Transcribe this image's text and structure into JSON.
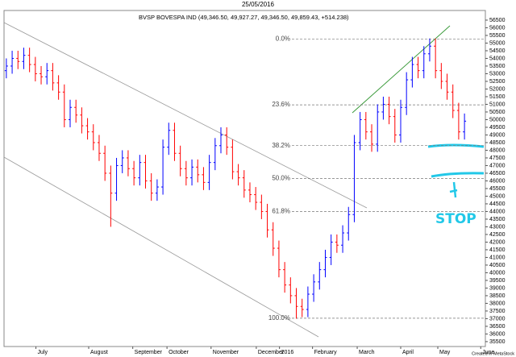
{
  "chart_data": {
    "type": "ohlc",
    "title": "25/05/2016",
    "subtitle": "BVSP BOVESPA IND (49,346.50, 49,927.27, 49,346.50, 49,859.43, +514.238)",
    "credit": "Created in MetaStock",
    "annotations": [
      "STOP"
    ],
    "up_color": "#0000ff",
    "down_color": "#ff0000",
    "xlim": [
      -0.4,
      82.6
    ],
    "xticks": [
      {
        "value": 5.1,
        "label": "July"
      },
      {
        "value": 14.2,
        "label": "August"
      },
      {
        "value": 21.8,
        "label": "September"
      },
      {
        "value": 27.7,
        "label": "October"
      },
      {
        "value": 35.3,
        "label": "November"
      },
      {
        "value": 43.1,
        "label": "December"
      },
      {
        "value": 47.1,
        "label": "2016"
      },
      {
        "value": 52.8,
        "label": "February"
      },
      {
        "value": 60.5,
        "label": "March"
      },
      {
        "value": 68.0,
        "label": "April"
      },
      {
        "value": 74.4,
        "label": "May"
      },
      {
        "value": 81.8,
        "label": "June"
      }
    ],
    "ylim": [
      35180,
      57130
    ],
    "yticks": [
      35500,
      36000,
      36500,
      37000,
      37500,
      38000,
      38500,
      39000,
      39500,
      40000,
      40500,
      41000,
      41500,
      42000,
      42500,
      43000,
      43500,
      44000,
      44500,
      45000,
      45500,
      46000,
      46500,
      47000,
      47500,
      48000,
      48500,
      49000,
      49500,
      50000,
      50500,
      51000,
      51500,
      52000,
      52500,
      53000,
      53500,
      54000,
      54500,
      55000,
      55500,
      56000,
      56500
    ],
    "fib_levels": [
      {
        "label": "0.0%",
        "value": 55270
      },
      {
        "label": "23.6%",
        "value": 50965
      },
      {
        "label": "38.2%",
        "value": 48302
      },
      {
        "label": "50.0%",
        "value": 46150
      },
      {
        "label": "61.8%",
        "value": 43998
      },
      {
        "label": "100.0%",
        "value": 37030
      }
    ],
    "open": [
      53200,
      53500,
      54000,
      53800,
      54200,
      53600,
      53000,
      52800,
      53200,
      52400,
      51800,
      50000,
      50800,
      50300,
      49600,
      49200,
      48500,
      47800,
      46500,
      45200,
      47000,
      47500,
      46800,
      46200,
      47200,
      46000,
      45200,
      45600,
      48200,
      49300,
      47800,
      46800,
      46200,
      46900,
      46400,
      45900,
      47200,
      48300,
      49000,
      48200,
      46600,
      46200,
      45400,
      45100,
      44600,
      44000,
      42800,
      41600,
      40200,
      39200,
      38500,
      37800,
      37600,
      38600,
      39400,
      40200,
      41000,
      42000,
      41800,
      42600,
      43800,
      48500,
      50000,
      49200,
      48400,
      50500,
      51000,
      50200,
      49000,
      50800,
      52600,
      53600,
      53200,
      54300,
      54800,
      53200,
      52500,
      51800,
      50600,
      49200
    ],
    "high": [
      54000,
      54500,
      54500,
      54700,
      54700,
      54100,
      53500,
      53700,
      53700,
      52900,
      52300,
      51300,
      51300,
      50800,
      50100,
      49700,
      49000,
      48300,
      47000,
      47500,
      48000,
      48000,
      47300,
      47700,
      47700,
      46500,
      46100,
      48700,
      49800,
      49800,
      48300,
      47300,
      47400,
      47400,
      46900,
      47700,
      48800,
      49500,
      49500,
      48700,
      47100,
      46700,
      45900,
      45600,
      45100,
      44500,
      43300,
      42100,
      40700,
      39700,
      39000,
      38300,
      39100,
      39900,
      40700,
      41500,
      42500,
      42500,
      43100,
      44300,
      49000,
      50500,
      50500,
      49700,
      51000,
      51500,
      51500,
      50700,
      51300,
      53100,
      54100,
      54100,
      54800,
      55300,
      55300,
      53700,
      53000,
      52300,
      51100,
      50400
    ],
    "low": [
      52700,
      53000,
      53300,
      53300,
      53100,
      52500,
      52300,
      52300,
      51900,
      51300,
      49500,
      49500,
      49800,
      49100,
      48700,
      48000,
      47300,
      46000,
      43000,
      44700,
      46500,
      46300,
      45700,
      45700,
      45500,
      44700,
      44700,
      45100,
      47700,
      47300,
      46300,
      45700,
      45700,
      45900,
      45400,
      45400,
      46700,
      47800,
      47700,
      46100,
      45700,
      44900,
      44600,
      44100,
      43500,
      42300,
      41100,
      39700,
      38700,
      38000,
      37000,
      37100,
      37100,
      38100,
      38900,
      39700,
      40500,
      41300,
      41300,
      42100,
      43300,
      48000,
      48700,
      47900,
      47900,
      50000,
      49700,
      48500,
      48500,
      50300,
      52100,
      52700,
      52700,
      53800,
      52700,
      52000,
      51300,
      50100,
      48700,
      48700
    ],
    "close": [
      53500,
      54000,
      53800,
      54200,
      53600,
      53000,
      52800,
      53200,
      52400,
      51800,
      50000,
      50800,
      50300,
      49600,
      49200,
      48500,
      47800,
      46500,
      45200,
      47000,
      47500,
      46800,
      46200,
      47200,
      46000,
      45200,
      45600,
      48200,
      49300,
      47800,
      46800,
      46200,
      46900,
      46400,
      45900,
      47200,
      48300,
      49000,
      48200,
      46600,
      46200,
      45400,
      45100,
      44600,
      44000,
      42800,
      41600,
      40200,
      39200,
      38500,
      37800,
      37600,
      38600,
      39400,
      40200,
      41000,
      42000,
      41800,
      42600,
      43800,
      48500,
      50000,
      49200,
      48400,
      50500,
      51000,
      50200,
      49000,
      50800,
      52600,
      53600,
      53200,
      54300,
      54800,
      53200,
      52500,
      51800,
      50600,
      49200,
      49900
    ]
  }
}
